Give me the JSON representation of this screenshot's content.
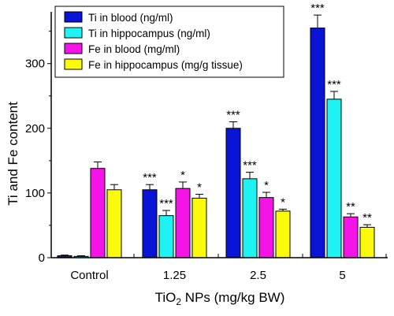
{
  "chart_data": {
    "type": "bar",
    "title": "",
    "xlabel_parts": {
      "pre": "TiO",
      "sub": "2",
      "post": " NPs (mg/kg BW)"
    },
    "ylabel": "Ti and Fe content",
    "ylim": [
      0,
      380
    ],
    "yticks": [
      0,
      100,
      200,
      300
    ],
    "ytick_labels": [
      "0",
      "100",
      "200",
      "300"
    ],
    "categories": [
      "Control",
      "1.25",
      "2.5",
      "5"
    ],
    "legend_position": "top-left",
    "grid": false,
    "series": [
      {
        "name": "Ti in blood (ng/ml)",
        "color": "#0a14d4",
        "values": [
          3,
          105,
          200,
          355
        ],
        "errors": [
          1,
          8,
          10,
          20
        ],
        "sig": [
          "",
          "***",
          "***",
          "***"
        ]
      },
      {
        "name": "Ti in hippocampus (ng/ml)",
        "color": "#1ff2f2",
        "values": [
          2,
          65,
          122,
          245
        ],
        "errors": [
          1,
          8,
          10,
          12
        ],
        "sig": [
          "",
          "***",
          "***",
          "***"
        ]
      },
      {
        "name": "Fe in blood (mg/ml)",
        "color": "#f514e8",
        "values": [
          138,
          107,
          93,
          63
        ],
        "errors": [
          10,
          10,
          8,
          5
        ],
        "sig": [
          "",
          "*",
          "*",
          "**"
        ]
      },
      {
        "name": "Fe in hippocampus (mg/g tissue)",
        "color": "#fafa0a",
        "values": [
          105,
          92,
          72,
          47
        ],
        "errors": [
          8,
          6,
          3,
          4
        ],
        "sig": [
          "",
          "*",
          "*",
          "**"
        ]
      }
    ]
  }
}
